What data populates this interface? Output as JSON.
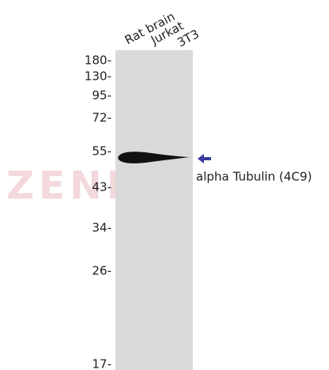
{
  "lanes": [
    "Rat brain",
    "Jurkat",
    "3T3"
  ],
  "markers": [
    "180-",
    "130-",
    "95-",
    "72-",
    "55-",
    "43-",
    "34-",
    "26-",
    "17-"
  ],
  "target": "alpha Tubulin (4C9)",
  "watermark": "ZENBIO"
}
